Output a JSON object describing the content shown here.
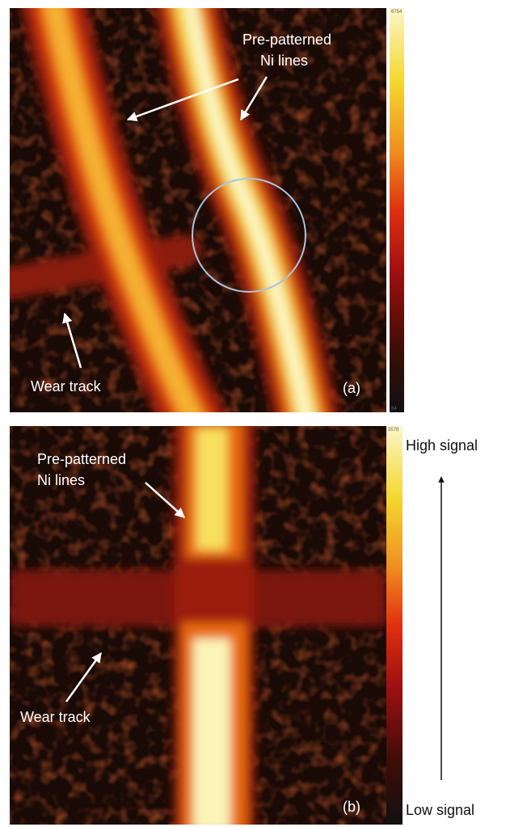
{
  "panel_a": {
    "label": "(a)",
    "scale_max": "6754",
    "scale_min": "84",
    "annotations": {
      "lines_label": [
        "Pre-patterned",
        "Ni lines"
      ],
      "wear_track": "Wear track"
    }
  },
  "panel_b": {
    "label": "(b)",
    "scale_max": "3578",
    "annotations": {
      "lines_label": [
        "Pre-patterned",
        "Ni lines"
      ],
      "wear_track": "Wear track"
    }
  },
  "legend": {
    "high": "High signal",
    "low": "Low signal"
  }
}
